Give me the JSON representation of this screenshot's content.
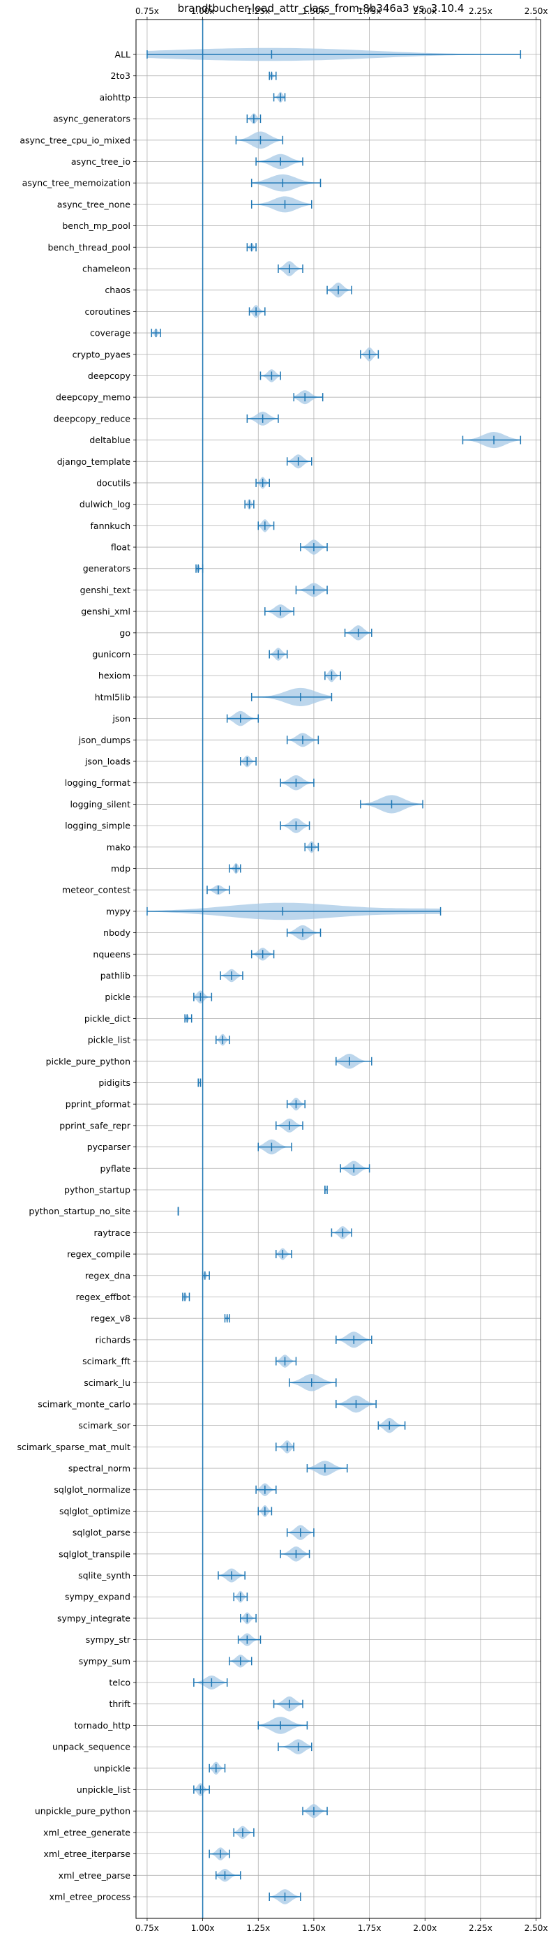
{
  "chart_data": {
    "type": "violin",
    "orientation": "horizontal",
    "title": "brandtbucher-load_attr_class_from-8b346a3 vs. 3.10.4",
    "xlabel": "",
    "ylabel": "",
    "xlim": [
      0.7,
      2.52
    ],
    "xticks": [
      0.75,
      1.0,
      1.25,
      1.5,
      1.75,
      2.0,
      2.25,
      2.5
    ],
    "xtick_labels": [
      "0.75x",
      "1.00x",
      "1.25x",
      "1.50x",
      "1.75x",
      "2.00x",
      "2.25x",
      "2.50x"
    ],
    "reference_line": 1.0,
    "grid": true,
    "color": "#1f77b4",
    "fill_color": "#a6c8e6",
    "categories": [
      {
        "name": "ALL",
        "min": 0.75,
        "max": 2.43,
        "median": 1.31,
        "width": 0.6,
        "modes": [
          [
            0.9,
            0.55
          ],
          [
            1.25,
            0.45
          ],
          [
            1.55,
            0.7
          ]
        ]
      },
      {
        "name": "2to3",
        "min": 1.3,
        "max": 1.33,
        "median": 1.31,
        "width": 0.35
      },
      {
        "name": "aiohttp",
        "min": 1.32,
        "max": 1.37,
        "median": 1.35,
        "width": 0.5
      },
      {
        "name": "async_generators",
        "min": 1.2,
        "max": 1.26,
        "median": 1.23,
        "width": 0.5
      },
      {
        "name": "async_tree_cpu_io_mixed",
        "min": 1.15,
        "max": 1.36,
        "median": 1.26,
        "width": 0.8
      },
      {
        "name": "async_tree_io",
        "min": 1.24,
        "max": 1.45,
        "median": 1.35,
        "width": 0.7
      },
      {
        "name": "async_tree_memoization",
        "min": 1.22,
        "max": 1.53,
        "median": 1.36,
        "width": 0.8
      },
      {
        "name": "async_tree_none",
        "min": 1.22,
        "max": 1.49,
        "median": 1.37,
        "width": 0.75
      },
      {
        "name": "bench_mp_pool",
        "min": 1.0,
        "max": 1.0,
        "median": 1.0,
        "width": 0.0,
        "empty": true
      },
      {
        "name": "bench_thread_pool",
        "min": 1.2,
        "max": 1.24,
        "median": 1.22,
        "width": 0.4
      },
      {
        "name": "chameleon",
        "min": 1.34,
        "max": 1.45,
        "median": 1.39,
        "width": 0.7
      },
      {
        "name": "chaos",
        "min": 1.56,
        "max": 1.67,
        "median": 1.61,
        "width": 0.7
      },
      {
        "name": "coroutines",
        "min": 1.21,
        "max": 1.28,
        "median": 1.24,
        "width": 0.6
      },
      {
        "name": "coverage",
        "min": 0.77,
        "max": 0.81,
        "median": 0.79,
        "width": 0.4
      },
      {
        "name": "crypto_pyaes",
        "min": 1.71,
        "max": 1.79,
        "median": 1.75,
        "width": 0.65
      },
      {
        "name": "deepcopy",
        "min": 1.26,
        "max": 1.35,
        "median": 1.31,
        "width": 0.6
      },
      {
        "name": "deepcopy_memo",
        "min": 1.41,
        "max": 1.54,
        "median": 1.46,
        "width": 0.65
      },
      {
        "name": "deepcopy_reduce",
        "min": 1.2,
        "max": 1.34,
        "median": 1.27,
        "width": 0.65
      },
      {
        "name": "deltablue",
        "min": 2.17,
        "max": 2.43,
        "median": 2.31,
        "width": 0.75
      },
      {
        "name": "django_template",
        "min": 1.38,
        "max": 1.49,
        "median": 1.43,
        "width": 0.65
      },
      {
        "name": "docutils",
        "min": 1.24,
        "max": 1.3,
        "median": 1.27,
        "width": 0.55
      },
      {
        "name": "dulwich_log",
        "min": 1.19,
        "max": 1.23,
        "median": 1.21,
        "width": 0.5
      },
      {
        "name": "fannkuch",
        "min": 1.25,
        "max": 1.32,
        "median": 1.28,
        "width": 0.6
      },
      {
        "name": "float",
        "min": 1.44,
        "max": 1.56,
        "median": 1.5,
        "width": 0.7
      },
      {
        "name": "generators",
        "min": 0.97,
        "max": 1.0,
        "median": 0.98,
        "width": 0.4
      },
      {
        "name": "genshi_text",
        "min": 1.42,
        "max": 1.56,
        "median": 1.5,
        "width": 0.65
      },
      {
        "name": "genshi_xml",
        "min": 1.28,
        "max": 1.41,
        "median": 1.35,
        "width": 0.65
      },
      {
        "name": "go",
        "min": 1.64,
        "max": 1.76,
        "median": 1.7,
        "width": 0.7
      },
      {
        "name": "gunicorn",
        "min": 1.3,
        "max": 1.38,
        "median": 1.34,
        "width": 0.6
      },
      {
        "name": "hexiom",
        "min": 1.55,
        "max": 1.62,
        "median": 1.58,
        "width": 0.6
      },
      {
        "name": "html5lib",
        "min": 1.22,
        "max": 1.58,
        "median": 1.44,
        "width": 0.85
      },
      {
        "name": "json",
        "min": 1.11,
        "max": 1.25,
        "median": 1.17,
        "width": 0.7
      },
      {
        "name": "json_dumps",
        "min": 1.38,
        "max": 1.52,
        "median": 1.45,
        "width": 0.65
      },
      {
        "name": "json_loads",
        "min": 1.17,
        "max": 1.24,
        "median": 1.2,
        "width": 0.55
      },
      {
        "name": "logging_format",
        "min": 1.35,
        "max": 1.5,
        "median": 1.42,
        "width": 0.7
      },
      {
        "name": "logging_silent",
        "min": 1.71,
        "max": 1.99,
        "median": 1.85,
        "width": 0.85
      },
      {
        "name": "logging_simple",
        "min": 1.35,
        "max": 1.48,
        "median": 1.42,
        "width": 0.7
      },
      {
        "name": "mako",
        "min": 1.46,
        "max": 1.52,
        "median": 1.49,
        "width": 0.55
      },
      {
        "name": "mdp",
        "min": 1.12,
        "max": 1.17,
        "median": 1.15,
        "width": 0.5
      },
      {
        "name": "meteor_contest",
        "min": 1.02,
        "max": 1.12,
        "median": 1.07,
        "width": 0.45
      },
      {
        "name": "mypy",
        "min": 0.75,
        "max": 2.07,
        "median": 1.36,
        "width": 0.8,
        "modes": [
          [
            1.36,
            1.0
          ],
          [
            2.05,
            0.3
          ]
        ]
      },
      {
        "name": "nbody",
        "min": 1.38,
        "max": 1.53,
        "median": 1.45,
        "width": 0.7
      },
      {
        "name": "nqueens",
        "min": 1.22,
        "max": 1.32,
        "median": 1.27,
        "width": 0.6
      },
      {
        "name": "pathlib",
        "min": 1.08,
        "max": 1.18,
        "median": 1.13,
        "width": 0.6
      },
      {
        "name": "pickle",
        "min": 0.96,
        "max": 1.04,
        "median": 0.99,
        "width": 0.6
      },
      {
        "name": "pickle_dict",
        "min": 0.92,
        "max": 0.95,
        "median": 0.93,
        "width": 0.4
      },
      {
        "name": "pickle_list",
        "min": 1.06,
        "max": 1.12,
        "median": 1.09,
        "width": 0.55
      },
      {
        "name": "pickle_pure_python",
        "min": 1.6,
        "max": 1.76,
        "median": 1.66,
        "width": 0.7
      },
      {
        "name": "pidigits",
        "min": 0.98,
        "max": 0.99,
        "median": 0.99,
        "width": 0.3
      },
      {
        "name": "pprint_pformat",
        "min": 1.38,
        "max": 1.46,
        "median": 1.42,
        "width": 0.6
      },
      {
        "name": "pprint_safe_repr",
        "min": 1.33,
        "max": 1.45,
        "median": 1.39,
        "width": 0.65
      },
      {
        "name": "pycparser",
        "min": 1.25,
        "max": 1.4,
        "median": 1.31,
        "width": 0.7
      },
      {
        "name": "pyflate",
        "min": 1.62,
        "max": 1.75,
        "median": 1.68,
        "width": 0.7
      },
      {
        "name": "python_startup",
        "min": 1.55,
        "max": 1.56,
        "median": 1.55,
        "width": 0.35
      },
      {
        "name": "python_startup_no_site",
        "min": 0.89,
        "max": 0.89,
        "median": 0.89,
        "width": 0.3
      },
      {
        "name": "raytrace",
        "min": 1.58,
        "max": 1.67,
        "median": 1.63,
        "width": 0.6
      },
      {
        "name": "regex_compile",
        "min": 1.33,
        "max": 1.4,
        "median": 1.36,
        "width": 0.55
      },
      {
        "name": "regex_dna",
        "min": 1.0,
        "max": 1.03,
        "median": 1.01,
        "width": 0.35
      },
      {
        "name": "regex_effbot",
        "min": 0.91,
        "max": 0.94,
        "median": 0.92,
        "width": 0.4
      },
      {
        "name": "regex_v8",
        "min": 1.1,
        "max": 1.12,
        "median": 1.11,
        "width": 0.35
      },
      {
        "name": "richards",
        "min": 1.6,
        "max": 1.76,
        "median": 1.68,
        "width": 0.75
      },
      {
        "name": "scimark_fft",
        "min": 1.33,
        "max": 1.42,
        "median": 1.37,
        "width": 0.6
      },
      {
        "name": "scimark_lu",
        "min": 1.39,
        "max": 1.6,
        "median": 1.49,
        "width": 0.8
      },
      {
        "name": "scimark_monte_carlo",
        "min": 1.6,
        "max": 1.78,
        "median": 1.69,
        "width": 0.8
      },
      {
        "name": "scimark_sor",
        "min": 1.79,
        "max": 1.91,
        "median": 1.84,
        "width": 0.7
      },
      {
        "name": "scimark_sparse_mat_mult",
        "min": 1.33,
        "max": 1.41,
        "median": 1.38,
        "width": 0.6
      },
      {
        "name": "spectral_norm",
        "min": 1.47,
        "max": 1.65,
        "median": 1.55,
        "width": 0.7
      },
      {
        "name": "sqlglot_normalize",
        "min": 1.24,
        "max": 1.33,
        "median": 1.28,
        "width": 0.6
      },
      {
        "name": "sqlglot_optimize",
        "min": 1.25,
        "max": 1.31,
        "median": 1.28,
        "width": 0.55
      },
      {
        "name": "sqlglot_parse",
        "min": 1.38,
        "max": 1.5,
        "median": 1.44,
        "width": 0.7
      },
      {
        "name": "sqlglot_transpile",
        "min": 1.35,
        "max": 1.48,
        "median": 1.42,
        "width": 0.7
      },
      {
        "name": "sqlite_synth",
        "min": 1.07,
        "max": 1.19,
        "median": 1.13,
        "width": 0.65
      },
      {
        "name": "sympy_expand",
        "min": 1.14,
        "max": 1.2,
        "median": 1.17,
        "width": 0.55
      },
      {
        "name": "sympy_integrate",
        "min": 1.17,
        "max": 1.24,
        "median": 1.2,
        "width": 0.55
      },
      {
        "name": "sympy_str",
        "min": 1.16,
        "max": 1.26,
        "median": 1.2,
        "width": 0.6
      },
      {
        "name": "sympy_sum",
        "min": 1.12,
        "max": 1.22,
        "median": 1.17,
        "width": 0.6
      },
      {
        "name": "telco",
        "min": 0.96,
        "max": 1.11,
        "median": 1.04,
        "width": 0.65
      },
      {
        "name": "thrift",
        "min": 1.32,
        "max": 1.45,
        "median": 1.39,
        "width": 0.7
      },
      {
        "name": "tornado_http",
        "min": 1.25,
        "max": 1.47,
        "median": 1.35,
        "width": 0.8
      },
      {
        "name": "unpack_sequence",
        "min": 1.34,
        "max": 1.49,
        "median": 1.43,
        "width": 0.7
      },
      {
        "name": "unpickle",
        "min": 1.03,
        "max": 1.1,
        "median": 1.06,
        "width": 0.6
      },
      {
        "name": "unpickle_list",
        "min": 0.96,
        "max": 1.03,
        "median": 0.99,
        "width": 0.6
      },
      {
        "name": "unpickle_pure_python",
        "min": 1.45,
        "max": 1.56,
        "median": 1.5,
        "width": 0.65
      },
      {
        "name": "xml_etree_generate",
        "min": 1.14,
        "max": 1.23,
        "median": 1.18,
        "width": 0.6
      },
      {
        "name": "xml_etree_iterparse",
        "min": 1.03,
        "max": 1.12,
        "median": 1.08,
        "width": 0.6
      },
      {
        "name": "xml_etree_parse",
        "min": 1.06,
        "max": 1.17,
        "median": 1.1,
        "width": 0.6
      },
      {
        "name": "xml_etree_process",
        "min": 1.3,
        "max": 1.44,
        "median": 1.37,
        "width": 0.7
      }
    ]
  }
}
